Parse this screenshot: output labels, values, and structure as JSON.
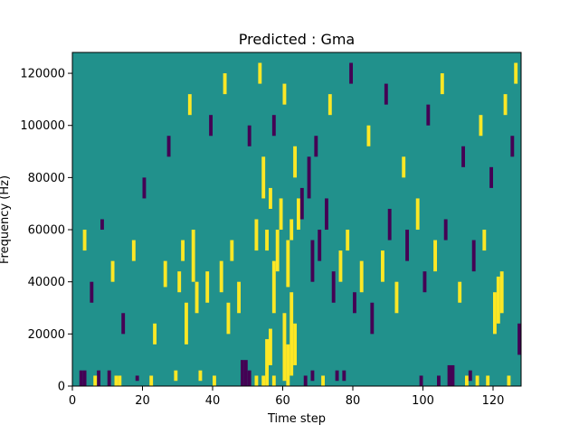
{
  "chart_data": {
    "type": "heatmap",
    "title": "Predicted : Gma",
    "xlabel": "Time step",
    "ylabel": "Frequency (Hz)",
    "xlim": [
      0,
      128
    ],
    "ylim": [
      0,
      128000
    ],
    "x_ticks": [
      0,
      20,
      40,
      60,
      80,
      100,
      120
    ],
    "y_ticks": [
      0,
      20000,
      40000,
      60000,
      80000,
      100000,
      120000
    ],
    "grid": false,
    "legend": "none",
    "colors": {
      "background": "#21918c",
      "high": "#fde725",
      "low": "#440154"
    },
    "n_time_steps": 128,
    "n_freq_bins": 64,
    "cells": [
      {
        "t": 55,
        "f0": 0,
        "f1": 9,
        "v": "high"
      },
      {
        "t": 56,
        "f0": 4,
        "f1": 11,
        "v": "high"
      },
      {
        "t": 57,
        "f0": 14,
        "f1": 24,
        "v": "high"
      },
      {
        "t": 60,
        "f0": 1,
        "f1": 14,
        "v": "high"
      },
      {
        "t": 61,
        "f0": 0,
        "f1": 8,
        "v": "high"
      },
      {
        "t": 61,
        "f0": 19,
        "f1": 28,
        "v": "high"
      },
      {
        "t": 62,
        "f0": 2,
        "f1": 18,
        "v": "high"
      },
      {
        "t": 63,
        "f0": 4,
        "f1": 12,
        "v": "high"
      },
      {
        "t": 64,
        "f0": 30,
        "f1": 36,
        "v": "high"
      },
      {
        "t": 120,
        "f0": 10,
        "f1": 18,
        "v": "high"
      },
      {
        "t": 121,
        "f0": 12,
        "f1": 21,
        "v": "high"
      },
      {
        "t": 122,
        "f0": 14,
        "f1": 22,
        "v": "high"
      },
      {
        "t": 2,
        "f0": 0,
        "f1": 3,
        "v": "low"
      },
      {
        "t": 3,
        "f0": 0,
        "f1": 3,
        "v": "low"
      },
      {
        "t": 7,
        "f0": 0,
        "f1": 3,
        "v": "low"
      },
      {
        "t": 10,
        "f0": 0,
        "f1": 3,
        "v": "low"
      },
      {
        "t": 48,
        "f0": 0,
        "f1": 5,
        "v": "low"
      },
      {
        "t": 49,
        "f0": 0,
        "f1": 5,
        "v": "low"
      },
      {
        "t": 50,
        "f0": 0,
        "f1": 3,
        "v": "low"
      },
      {
        "t": 107,
        "f0": 0,
        "f1": 4,
        "v": "low"
      },
      {
        "t": 108,
        "f0": 0,
        "f1": 4,
        "v": "low"
      },
      {
        "t": 127,
        "f0": 6,
        "f1": 12,
        "v": "low"
      },
      {
        "t": 6,
        "f0": 0,
        "f1": 2,
        "v": "high"
      },
      {
        "t": 12,
        "f0": 0,
        "f1": 2,
        "v": "high"
      },
      {
        "t": 13,
        "f0": 0,
        "f1": 2,
        "v": "high"
      },
      {
        "t": 22,
        "f0": 0,
        "f1": 2,
        "v": "high"
      },
      {
        "t": 29,
        "f0": 1,
        "f1": 3,
        "v": "high"
      },
      {
        "t": 18,
        "f0": 1,
        "f1": 2,
        "v": "low"
      },
      {
        "t": 36,
        "f0": 1,
        "f1": 3,
        "v": "high"
      },
      {
        "t": 40,
        "f0": 0,
        "f1": 2,
        "v": "high"
      },
      {
        "t": 52,
        "f0": 0,
        "f1": 2,
        "v": "high"
      },
      {
        "t": 54,
        "f0": 0,
        "f1": 2,
        "v": "high"
      },
      {
        "t": 57,
        "f0": 0,
        "f1": 2,
        "v": "high"
      },
      {
        "t": 66,
        "f0": 0,
        "f1": 2,
        "v": "low"
      },
      {
        "t": 68,
        "f0": 1,
        "f1": 3,
        "v": "low"
      },
      {
        "t": 71,
        "f0": 0,
        "f1": 2,
        "v": "high"
      },
      {
        "t": 75,
        "f0": 1,
        "f1": 3,
        "v": "low"
      },
      {
        "t": 77,
        "f0": 1,
        "f1": 3,
        "v": "low"
      },
      {
        "t": 99,
        "f0": 0,
        "f1": 2,
        "v": "low"
      },
      {
        "t": 104,
        "f0": 0,
        "f1": 2,
        "v": "low"
      },
      {
        "t": 112,
        "f0": 0,
        "f1": 2,
        "v": "high"
      },
      {
        "t": 115,
        "f0": 0,
        "f1": 2,
        "v": "high"
      },
      {
        "t": 118,
        "f0": 0,
        "f1": 2,
        "v": "high"
      },
      {
        "t": 124,
        "f0": 0,
        "f1": 2,
        "v": "high"
      },
      {
        "t": 113,
        "f0": 1,
        "f1": 3,
        "v": "low"
      },
      {
        "t": 26,
        "f0": 19,
        "f1": 24,
        "v": "high"
      },
      {
        "t": 30,
        "f0": 18,
        "f1": 22,
        "v": "high"
      },
      {
        "t": 31,
        "f0": 24,
        "f1": 28,
        "v": "high"
      },
      {
        "t": 32,
        "f0": 8,
        "f1": 16,
        "v": "high"
      },
      {
        "t": 34,
        "f0": 20,
        "f1": 30,
        "v": "high"
      },
      {
        "t": 35,
        "f0": 14,
        "f1": 20,
        "v": "high"
      },
      {
        "t": 38,
        "f0": 16,
        "f1": 22,
        "v": "high"
      },
      {
        "t": 42,
        "f0": 18,
        "f1": 24,
        "v": "high"
      },
      {
        "t": 44,
        "f0": 10,
        "f1": 16,
        "v": "high"
      },
      {
        "t": 45,
        "f0": 24,
        "f1": 28,
        "v": "high"
      },
      {
        "t": 47,
        "f0": 14,
        "f1": 20,
        "v": "high"
      },
      {
        "t": 52,
        "f0": 26,
        "f1": 32,
        "v": "high"
      },
      {
        "t": 54,
        "f0": 36,
        "f1": 44,
        "v": "high"
      },
      {
        "t": 55,
        "f0": 26,
        "f1": 30,
        "v": "high"
      },
      {
        "t": 56,
        "f0": 34,
        "f1": 38,
        "v": "high"
      },
      {
        "t": 58,
        "f0": 22,
        "f1": 30,
        "v": "high"
      },
      {
        "t": 59,
        "f0": 30,
        "f1": 36,
        "v": "high"
      },
      {
        "t": 62,
        "f0": 28,
        "f1": 32,
        "v": "high"
      },
      {
        "t": 63,
        "f0": 40,
        "f1": 46,
        "v": "high"
      },
      {
        "t": 65,
        "f0": 32,
        "f1": 38,
        "v": "low"
      },
      {
        "t": 67,
        "f0": 36,
        "f1": 44,
        "v": "low"
      },
      {
        "t": 68,
        "f0": 20,
        "f1": 28,
        "v": "low"
      },
      {
        "t": 70,
        "f0": 24,
        "f1": 30,
        "v": "low"
      },
      {
        "t": 72,
        "f0": 30,
        "f1": 36,
        "v": "low"
      },
      {
        "t": 74,
        "f0": 16,
        "f1": 22,
        "v": "low"
      },
      {
        "t": 76,
        "f0": 20,
        "f1": 26,
        "v": "high"
      },
      {
        "t": 78,
        "f0": 26,
        "f1": 30,
        "v": "high"
      },
      {
        "t": 80,
        "f0": 14,
        "f1": 18,
        "v": "low"
      },
      {
        "t": 82,
        "f0": 18,
        "f1": 24,
        "v": "high"
      },
      {
        "t": 85,
        "f0": 10,
        "f1": 16,
        "v": "low"
      },
      {
        "t": 88,
        "f0": 20,
        "f1": 26,
        "v": "high"
      },
      {
        "t": 90,
        "f0": 28,
        "f1": 34,
        "v": "low"
      },
      {
        "t": 92,
        "f0": 14,
        "f1": 20,
        "v": "high"
      },
      {
        "t": 95,
        "f0": 24,
        "f1": 30,
        "v": "low"
      },
      {
        "t": 98,
        "f0": 30,
        "f1": 36,
        "v": "high"
      },
      {
        "t": 100,
        "f0": 18,
        "f1": 22,
        "v": "low"
      },
      {
        "t": 103,
        "f0": 22,
        "f1": 28,
        "v": "high"
      },
      {
        "t": 106,
        "f0": 28,
        "f1": 32,
        "v": "low"
      },
      {
        "t": 110,
        "f0": 16,
        "f1": 20,
        "v": "high"
      },
      {
        "t": 114,
        "f0": 22,
        "f1": 28,
        "v": "low"
      },
      {
        "t": 117,
        "f0": 26,
        "f1": 30,
        "v": "high"
      },
      {
        "t": 3,
        "f0": 26,
        "f1": 30,
        "v": "high"
      },
      {
        "t": 5,
        "f0": 16,
        "f1": 20,
        "v": "low"
      },
      {
        "t": 8,
        "f0": 30,
        "f1": 32,
        "v": "low"
      },
      {
        "t": 11,
        "f0": 20,
        "f1": 24,
        "v": "high"
      },
      {
        "t": 14,
        "f0": 10,
        "f1": 14,
        "v": "low"
      },
      {
        "t": 17,
        "f0": 24,
        "f1": 28,
        "v": "high"
      },
      {
        "t": 20,
        "f0": 36,
        "f1": 40,
        "v": "low"
      },
      {
        "t": 23,
        "f0": 8,
        "f1": 12,
        "v": "high"
      },
      {
        "t": 27,
        "f0": 44,
        "f1": 48,
        "v": "low"
      },
      {
        "t": 33,
        "f0": 52,
        "f1": 56,
        "v": "high"
      },
      {
        "t": 39,
        "f0": 48,
        "f1": 52,
        "v": "low"
      },
      {
        "t": 43,
        "f0": 56,
        "f1": 60,
        "v": "high"
      },
      {
        "t": 50,
        "f0": 46,
        "f1": 50,
        "v": "low"
      },
      {
        "t": 53,
        "f0": 58,
        "f1": 62,
        "v": "high"
      },
      {
        "t": 57,
        "f0": 48,
        "f1": 52,
        "v": "low"
      },
      {
        "t": 60,
        "f0": 54,
        "f1": 58,
        "v": "high"
      },
      {
        "t": 69,
        "f0": 44,
        "f1": 48,
        "v": "low"
      },
      {
        "t": 73,
        "f0": 52,
        "f1": 56,
        "v": "high"
      },
      {
        "t": 79,
        "f0": 58,
        "f1": 62,
        "v": "low"
      },
      {
        "t": 84,
        "f0": 46,
        "f1": 50,
        "v": "high"
      },
      {
        "t": 89,
        "f0": 54,
        "f1": 58,
        "v": "low"
      },
      {
        "t": 94,
        "f0": 40,
        "f1": 44,
        "v": "high"
      },
      {
        "t": 101,
        "f0": 50,
        "f1": 54,
        "v": "low"
      },
      {
        "t": 105,
        "f0": 56,
        "f1": 60,
        "v": "high"
      },
      {
        "t": 111,
        "f0": 42,
        "f1": 46,
        "v": "low"
      },
      {
        "t": 116,
        "f0": 48,
        "f1": 52,
        "v": "high"
      },
      {
        "t": 119,
        "f0": 38,
        "f1": 42,
        "v": "low"
      },
      {
        "t": 123,
        "f0": 52,
        "f1": 56,
        "v": "high"
      },
      {
        "t": 125,
        "f0": 44,
        "f1": 48,
        "v": "low"
      },
      {
        "t": 126,
        "f0": 58,
        "f1": 62,
        "v": "high"
      }
    ]
  }
}
